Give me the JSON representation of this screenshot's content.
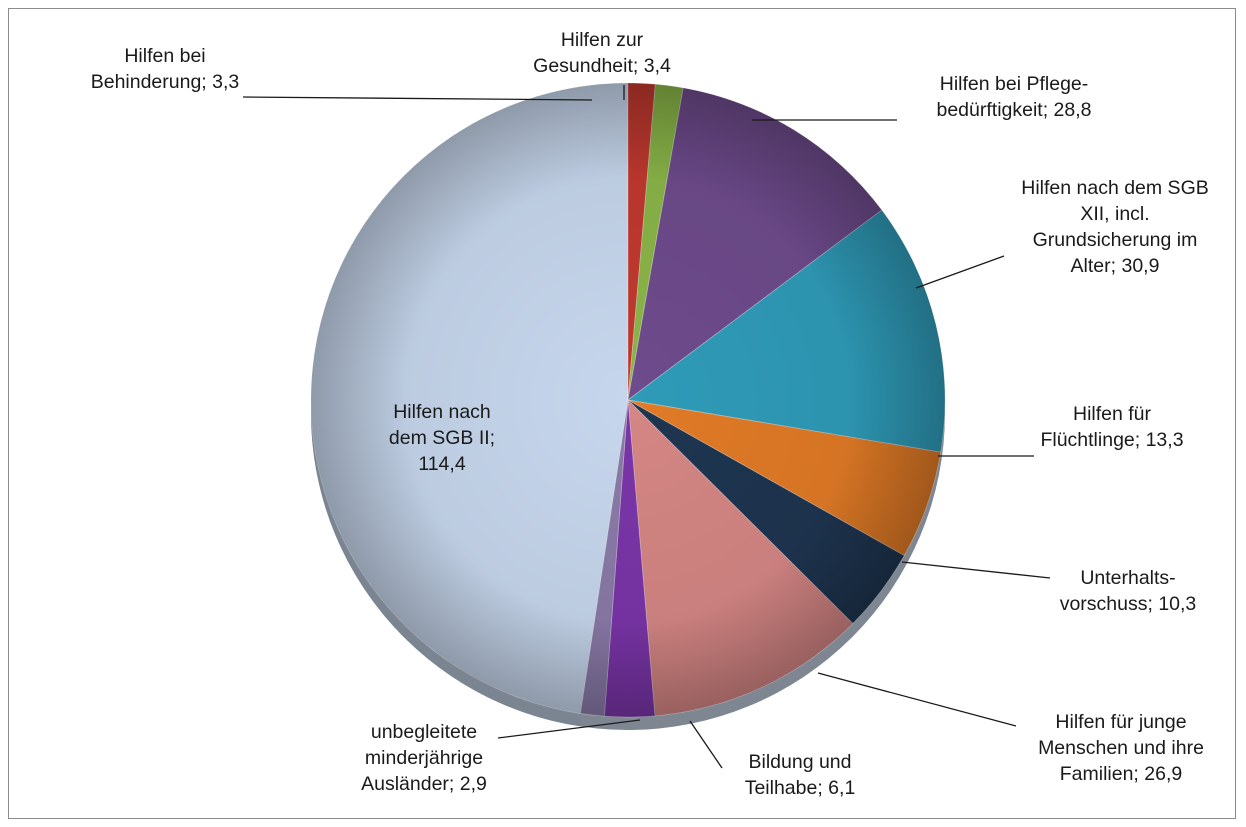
{
  "chart_data": {
    "type": "pie",
    "title": "",
    "categories": [
      "Hilfen nach dem SGB II",
      "Hilfen bei Behinderung",
      "Hilfen zur Gesundheit",
      "Hilfen bei Pflegebedürftigkeit",
      "Hilfen nach dem SGB XII, incl. Grundsicherung im Alter",
      "Hilfen für Flüchtlinge",
      "Unterhaltsvorschuss",
      "Hilfen für junge Menschen und ihre Familien",
      "Bildung und Teilhabe",
      "unbegleitete minderjährige Ausländer"
    ],
    "values": [
      114.4,
      3.3,
      3.4,
      28.8,
      30.9,
      13.3,
      10.3,
      26.9,
      6.1,
      2.9
    ],
    "colors": [
      "#c6d6ec",
      "#c0392f",
      "#8ab548",
      "#6e4b8c",
      "#2f9bb8",
      "#e07a26",
      "#1e3550",
      "#d48684",
      "#7a35a8",
      "#8a7aa8"
    ],
    "labels": [
      [
        "Hilfen nach",
        "dem SGB II;",
        "114,4"
      ],
      [
        "Hilfen bei",
        "Behinderung; 3,3"
      ],
      [
        "Hilfen zur",
        "Gesundheit; 3,4"
      ],
      [
        "Hilfen bei Pflege-",
        "bedürftigkeit; 28,8"
      ],
      [
        "Hilfen nach dem SGB",
        "XII, incl.",
        "Grundsicherung im",
        "Alter; 30,9"
      ],
      [
        "Hilfen für",
        "Flüchtlinge; 13,3"
      ],
      [
        "Unterhalts-",
        "vorschuss; 10,3"
      ],
      [
        "Hilfen für junge",
        "Menschen und ihre",
        "Familien; 26,9"
      ],
      [
        "Bildung und",
        "Teilhabe; 6,1"
      ],
      [
        "unbegleitete",
        "minderjährige",
        "Ausländer; 2,9"
      ]
    ],
    "legend": "none",
    "grid": false
  }
}
